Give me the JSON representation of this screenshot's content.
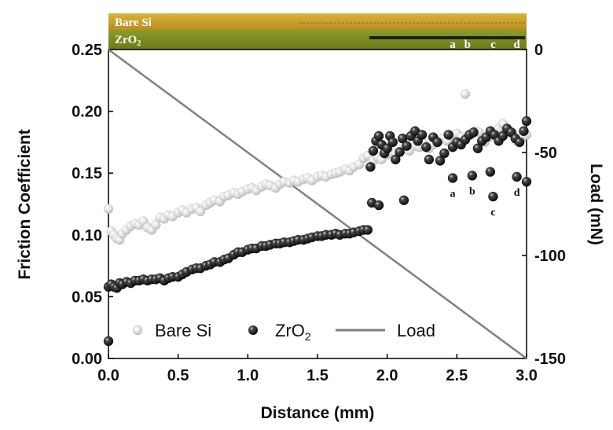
{
  "chart_data": {
    "type": "scatter",
    "xlabel": "Distance (mm)",
    "ylabel": "Friction Coefficient",
    "y2label": "Load (mN)",
    "xlim": [
      0,
      3.0
    ],
    "ylim": [
      0,
      0.25
    ],
    "y2lim": [
      -150,
      0
    ],
    "x_ticks": [
      "0.0",
      "0.5",
      "1.0",
      "1.5",
      "2.0",
      "2.5",
      "3.0"
    ],
    "y_ticks": [
      "0.00",
      "0.05",
      "0.10",
      "0.15",
      "0.20",
      "0.25"
    ],
    "y2_ticks": [
      "0",
      "-50",
      "-100",
      "-150"
    ],
    "legend": {
      "placement": "bottom",
      "bare_si": "Bare Si",
      "zro2": "ZrO",
      "zro2_sub": "2",
      "load": "Load"
    },
    "strip": {
      "bare_si": "Bare Si",
      "zro2": "ZrO",
      "zro2_sub": "2",
      "markers": [
        "a",
        "b",
        "c",
        "d"
      ]
    },
    "colors": {
      "bare_si": "#cfcfcf",
      "zro2": "#1a1a1a",
      "load": "#808080",
      "strip_top": "#c9a12e",
      "strip_bottom": "#7e8a22"
    },
    "series": [
      {
        "name": "Bare Si",
        "x": [
          0.0,
          0.02,
          0.04,
          0.06,
          0.08,
          0.1,
          0.13,
          0.16,
          0.19,
          0.22,
          0.25,
          0.28,
          0.31,
          0.34,
          0.37,
          0.4,
          0.43,
          0.46,
          0.5,
          0.53,
          0.56,
          0.6,
          0.63,
          0.66,
          0.7,
          0.73,
          0.76,
          0.8,
          0.83,
          0.86,
          0.9,
          0.93,
          0.96,
          1.0,
          1.03,
          1.06,
          1.1,
          1.13,
          1.16,
          1.2,
          1.23,
          1.26,
          1.3,
          1.33,
          1.36,
          1.4,
          1.43,
          1.46,
          1.5,
          1.53,
          1.56,
          1.6,
          1.63,
          1.66,
          1.7,
          1.73,
          1.76,
          1.8,
          1.83,
          1.86,
          1.9,
          1.93,
          1.96,
          2.0,
          2.03,
          2.06,
          2.1,
          2.13,
          2.16,
          2.2,
          2.23,
          2.26,
          2.3,
          2.33,
          2.36,
          2.4,
          2.43,
          2.46,
          2.5,
          2.53,
          2.56,
          2.6,
          2.63,
          2.66,
          2.7,
          2.73,
          2.76,
          2.8,
          2.83,
          2.86,
          2.9,
          2.93,
          2.96,
          3.0
        ],
        "y": [
          0.121,
          0.103,
          0.1,
          0.097,
          0.096,
          0.101,
          0.104,
          0.107,
          0.109,
          0.108,
          0.111,
          0.106,
          0.104,
          0.108,
          0.114,
          0.113,
          0.116,
          0.115,
          0.118,
          0.12,
          0.118,
          0.121,
          0.122,
          0.119,
          0.124,
          0.126,
          0.128,
          0.127,
          0.131,
          0.132,
          0.134,
          0.133,
          0.135,
          0.137,
          0.138,
          0.136,
          0.139,
          0.141,
          0.14,
          0.138,
          0.141,
          0.143,
          0.142,
          0.144,
          0.143,
          0.145,
          0.146,
          0.144,
          0.147,
          0.148,
          0.147,
          0.149,
          0.15,
          0.151,
          0.153,
          0.152,
          0.155,
          0.157,
          0.162,
          0.164,
          0.16,
          0.163,
          0.161,
          0.165,
          0.167,
          0.166,
          0.169,
          0.17,
          0.168,
          0.172,
          0.171,
          0.174,
          0.17,
          0.173,
          0.175,
          0.178,
          0.176,
          0.18,
          0.182,
          0.179,
          0.214,
          0.181,
          0.184,
          0.183,
          0.175,
          0.179,
          0.182,
          0.186,
          0.19,
          0.184,
          0.182,
          0.176,
          0.178,
          0.181
        ]
      },
      {
        "name": "ZrO2",
        "x": [
          0.0,
          0.02,
          0.04,
          0.06,
          0.08,
          0.1,
          0.13,
          0.16,
          0.19,
          0.22,
          0.25,
          0.28,
          0.31,
          0.34,
          0.37,
          0.4,
          0.43,
          0.46,
          0.5,
          0.53,
          0.56,
          0.6,
          0.63,
          0.66,
          0.7,
          0.73,
          0.76,
          0.8,
          0.83,
          0.86,
          0.9,
          0.93,
          0.96,
          1.0,
          1.03,
          1.06,
          1.1,
          1.13,
          1.16,
          1.2,
          1.23,
          1.26,
          1.3,
          1.33,
          1.36,
          1.4,
          1.43,
          1.46,
          1.5,
          1.53,
          1.56,
          1.6,
          1.63,
          1.66,
          1.7,
          1.73,
          1.76,
          1.8,
          1.83,
          1.86,
          1.88,
          1.9,
          1.92,
          1.94,
          1.96,
          1.98,
          2.0,
          2.02,
          2.04,
          2.06,
          2.09,
          2.11,
          2.14,
          2.17,
          2.2,
          2.22,
          2.25,
          2.28,
          2.3,
          2.33,
          2.36,
          2.38,
          2.41,
          2.44,
          2.47,
          2.5,
          2.53,
          2.56,
          2.59,
          2.62,
          2.65,
          2.68,
          2.71,
          2.74,
          2.77,
          2.8,
          2.83,
          2.86,
          2.89,
          2.92,
          2.95,
          2.98,
          3.0,
          2.47,
          2.61,
          2.74,
          2.76,
          2.93,
          3.0,
          1.89,
          1.94,
          2.12,
          0.0
        ],
        "y": [
          0.058,
          0.06,
          0.058,
          0.057,
          0.061,
          0.06,
          0.062,
          0.061,
          0.063,
          0.063,
          0.064,
          0.063,
          0.064,
          0.064,
          0.065,
          0.063,
          0.065,
          0.066,
          0.066,
          0.068,
          0.07,
          0.072,
          0.073,
          0.073,
          0.075,
          0.076,
          0.078,
          0.078,
          0.08,
          0.081,
          0.084,
          0.086,
          0.086,
          0.088,
          0.089,
          0.089,
          0.091,
          0.091,
          0.092,
          0.093,
          0.093,
          0.094,
          0.094,
          0.095,
          0.096,
          0.096,
          0.097,
          0.098,
          0.099,
          0.099,
          0.1,
          0.1,
          0.101,
          0.1,
          0.101,
          0.101,
          0.102,
          0.103,
          0.104,
          0.104,
          0.155,
          0.168,
          0.176,
          0.18,
          0.173,
          0.166,
          0.17,
          0.18,
          0.175,
          0.161,
          0.167,
          0.178,
          0.172,
          0.18,
          0.184,
          0.176,
          0.181,
          0.171,
          0.161,
          0.179,
          0.175,
          0.16,
          0.166,
          0.181,
          0.171,
          0.175,
          0.173,
          0.177,
          0.181,
          0.183,
          0.17,
          0.176,
          0.179,
          0.184,
          0.181,
          0.176,
          0.18,
          0.186,
          0.183,
          0.178,
          0.175,
          0.184,
          0.192,
          0.146,
          0.148,
          0.151,
          0.131,
          0.147,
          0.143,
          0.126,
          0.124,
          0.128,
          0.014
        ]
      },
      {
        "name": "Load",
        "x": [
          0,
          3.0
        ],
        "y2": [
          0,
          -150
        ]
      }
    ],
    "annotations": [
      {
        "text": "a",
        "x": 2.47,
        "y": 0.146
      },
      {
        "text": "b",
        "x": 2.61,
        "y": 0.148
      },
      {
        "text": "c",
        "x": 2.76,
        "y": 0.131
      },
      {
        "text": "d",
        "x": 2.93,
        "y": 0.147
      }
    ]
  }
}
